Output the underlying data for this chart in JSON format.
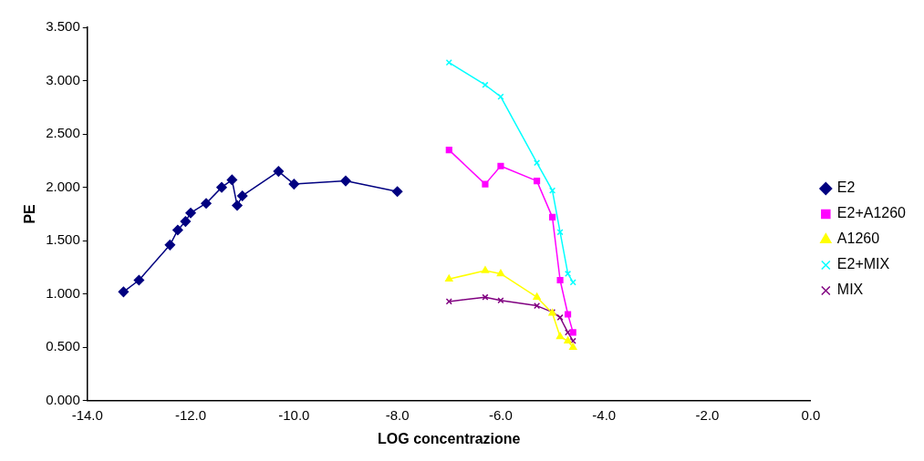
{
  "chart_data": {
    "type": "line",
    "xlabel": "LOG concentrazione",
    "ylabel": "PE",
    "xlim": [
      -14,
      0
    ],
    "xticks": [
      {
        "value": -14,
        "label": "-14.0"
      },
      {
        "value": -12,
        "label": "-12.0"
      },
      {
        "value": -10,
        "label": "-10.0"
      },
      {
        "value": -8,
        "label": "-8.0"
      },
      {
        "value": -6,
        "label": "-6.0"
      },
      {
        "value": -4,
        "label": "-4.0"
      },
      {
        "value": -2,
        "label": "-2.0"
      },
      {
        "value": 0,
        "label": "0.0"
      }
    ],
    "ylim": [
      0,
      3.5
    ],
    "yticks": [
      {
        "value": 0,
        "label": "0.000"
      },
      {
        "value": 0.5,
        "label": "0.500"
      },
      {
        "value": 1,
        "label": "1.000"
      },
      {
        "value": 1.5,
        "label": "1.500"
      },
      {
        "value": 2,
        "label": "2.000"
      },
      {
        "value": 2.5,
        "label": "2.500"
      },
      {
        "value": 3,
        "label": "3.000"
      },
      {
        "value": 3.5,
        "label": "3.500"
      }
    ],
    "grid": false,
    "legend": "right",
    "series": [
      {
        "name": "E2",
        "color": "#000080",
        "marker": "diamond",
        "x": [
          -13.3,
          -13.0,
          -12.4,
          -12.25,
          -12.1,
          -12.0,
          -11.7,
          -11.4,
          -11.2,
          -11.1,
          -11.0,
          -10.3,
          -10.0,
          -9.0,
          -8.0
        ],
        "values": [
          1.02,
          1.13,
          1.46,
          1.6,
          1.68,
          1.76,
          1.85,
          2.0,
          2.07,
          1.83,
          1.92,
          2.15,
          2.03,
          2.06,
          1.96
        ]
      },
      {
        "name": "E2+A1260",
        "color": "#ff00ff",
        "marker": "square",
        "x": [
          -7.0,
          -6.3,
          -6.0,
          -5.3,
          -5.0,
          -4.85,
          -4.7,
          -4.6
        ],
        "values": [
          2.35,
          2.03,
          2.2,
          2.06,
          1.72,
          1.13,
          0.81,
          0.64
        ]
      },
      {
        "name": "A1260",
        "color": "#ffff00",
        "marker": "triangle",
        "x": [
          -7.0,
          -6.3,
          -6.0,
          -5.3,
          -5.0,
          -4.85,
          -4.7,
          -4.6
        ],
        "values": [
          1.14,
          1.22,
          1.19,
          0.97,
          0.82,
          0.6,
          0.56,
          0.5
        ]
      },
      {
        "name": "E2+MIX",
        "color": "#00ffff",
        "marker": "cross",
        "x": [
          -7.0,
          -6.3,
          -6.0,
          -5.3,
          -5.0,
          -4.85,
          -4.7,
          -4.6
        ],
        "values": [
          3.17,
          2.96,
          2.85,
          2.23,
          1.97,
          1.58,
          1.19,
          1.11
        ]
      },
      {
        "name": "MIX",
        "color": "#800080",
        "marker": "cross",
        "x": [
          -7.0,
          -6.3,
          -6.0,
          -5.3,
          -5.0,
          -4.85,
          -4.7,
          -4.6
        ],
        "values": [
          0.93,
          0.97,
          0.94,
          0.89,
          0.83,
          0.78,
          0.64,
          0.56
        ]
      }
    ]
  }
}
